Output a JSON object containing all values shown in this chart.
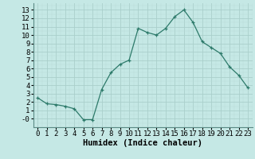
{
  "x": [
    0,
    1,
    2,
    3,
    4,
    5,
    6,
    7,
    8,
    9,
    10,
    11,
    12,
    13,
    14,
    15,
    16,
    17,
    18,
    19,
    20,
    21,
    22,
    23
  ],
  "y": [
    2.5,
    1.8,
    1.7,
    1.5,
    1.2,
    -0.1,
    -0.1,
    3.5,
    5.5,
    6.5,
    7.0,
    10.8,
    10.3,
    10.0,
    10.8,
    12.2,
    13.0,
    11.5,
    9.2,
    8.5,
    7.8,
    6.2,
    5.2,
    3.7
  ],
  "xlabel": "Humidex (Indice chaleur)",
  "line_color": "#2d7a6a",
  "marker_color": "#2d7a6a",
  "bg_color": "#c5e8e5",
  "grid_major_color": "#aacfcb",
  "grid_minor_color": "#bbdbd8",
  "xlim": [
    -0.5,
    23.5
  ],
  "ylim": [
    -1.0,
    13.8
  ],
  "yticks": [
    0,
    1,
    2,
    3,
    4,
    5,
    6,
    7,
    8,
    9,
    10,
    11,
    12,
    13
  ],
  "xlabel_fontsize": 7.5,
  "tick_fontsize": 6.5
}
